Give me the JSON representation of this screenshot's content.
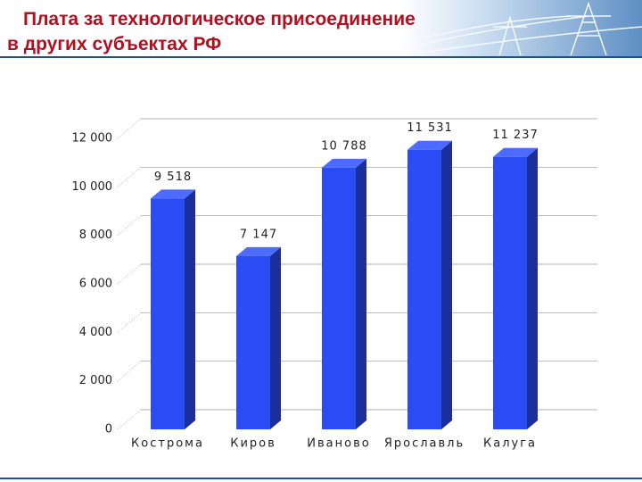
{
  "chart_data": {
    "type": "bar3d",
    "title": "Плата за технологическое присоединение в других субъектах РФ",
    "categories": [
      "Кострома",
      "Киров",
      "Иваново",
      "Ярославль",
      "Калуга"
    ],
    "values": [
      9518,
      7147,
      10788,
      11531,
      11237
    ],
    "value_labels": [
      "9 518",
      "7 147",
      "10 788",
      "11 531",
      "11 237"
    ],
    "color": "#2b4cf5",
    "ylim": [
      0,
      12000
    ],
    "yticks": [
      0,
      {
        "value": 2000,
        "label": "2 000"
      },
      {
        "value": 4000,
        "label": "4 000"
      },
      {
        "value": 6000,
        "label": "6 000"
      },
      {
        "value": 8000,
        "label": "8 000"
      },
      {
        "value": 10000,
        "label": "10 000"
      },
      {
        "value": 12000,
        "label": "12 000"
      }
    ],
    "grid": true
  }
}
